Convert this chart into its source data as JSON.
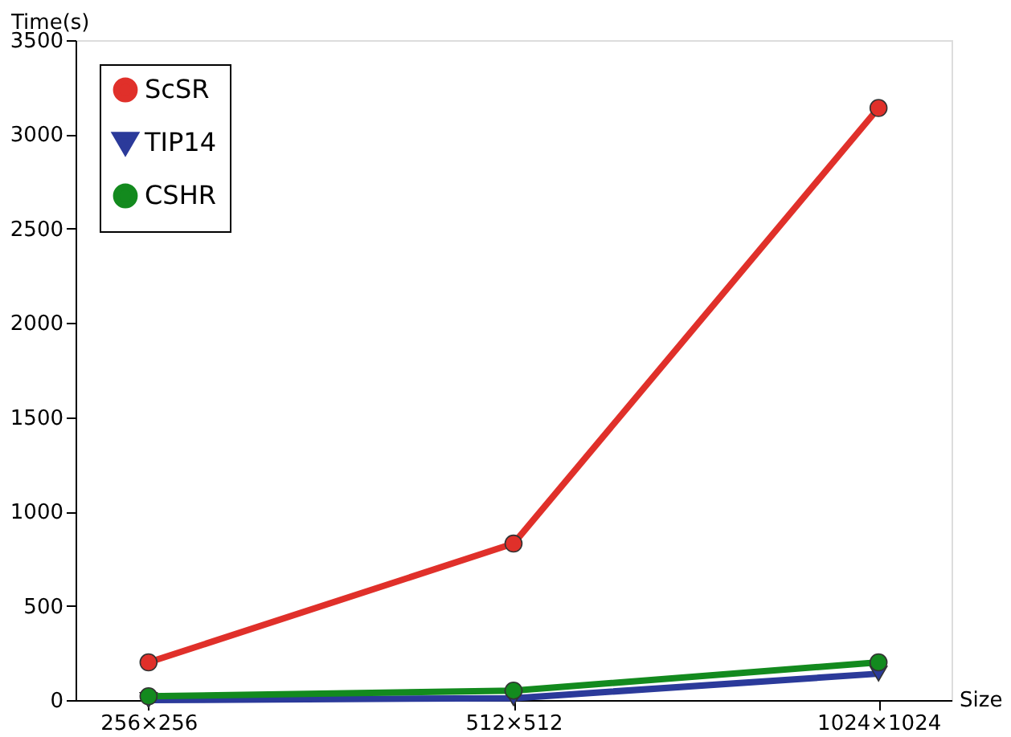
{
  "chart_data": {
    "type": "line",
    "xlabel": "Size",
    "ylabel": "Time(s)",
    "categories": [
      "256×256",
      "512×512",
      "1024×1024"
    ],
    "ylim": [
      0,
      3500
    ],
    "yticks": [
      0,
      500,
      1000,
      1500,
      2000,
      2500,
      3000,
      3500
    ],
    "series": [
      {
        "name": "ScSR",
        "color": "#e0302a",
        "marker": "circle",
        "values": [
          200,
          830,
          3140
        ]
      },
      {
        "name": "TIP14",
        "color": "#2b3a9a",
        "marker": "triangle-down",
        "values": [
          0,
          10,
          140
        ]
      },
      {
        "name": "CSHR",
        "color": "#138a1e",
        "marker": "circle",
        "values": [
          20,
          50,
          200
        ]
      }
    ],
    "grid": false,
    "legend": "top left",
    "line_style": "solid"
  }
}
